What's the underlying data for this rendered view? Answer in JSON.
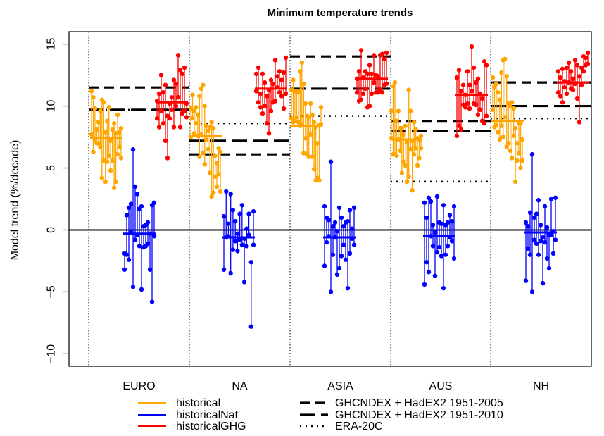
{
  "chart_data": {
    "type": "scatter",
    "title": "Minimum temperature trends",
    "xlabel": "",
    "ylabel": "Model trend (%/decade)",
    "ylim": [
      -11,
      16
    ],
    "yticks": [
      -10,
      -5,
      0,
      5,
      10,
      15
    ],
    "categories": [
      "EURO",
      "NA",
      "ASIA",
      "AUS",
      "NH"
    ],
    "grid": false,
    "zero_line": true,
    "series": [
      {
        "name": "historical",
        "color": "#FFA500",
        "means": [
          7.4,
          7.6,
          8.4,
          7.3,
          8.8
        ],
        "groups": [
          [
            [
              7.7,
              11.2
            ],
            [
              6.3,
              10.7
            ],
            [
              7.3,
              9.8
            ],
            [
              7.0,
              8.1
            ],
            [
              7.0,
              8.7
            ],
            [
              6.7,
              9.6
            ],
            [
              4.2,
              10.5
            ],
            [
              5.6,
              10.3
            ],
            [
              3.9,
              7.9
            ],
            [
              5.5,
              8.8
            ],
            [
              6.0,
              9.9
            ],
            [
              4.8,
              7.2
            ],
            [
              5.6,
              8.1
            ],
            [
              3.4,
              8.6
            ],
            [
              3.9,
              7.8
            ],
            [
              6.1,
              9.3
            ],
            [
              6.7,
              7.9
            ],
            [
              5.8,
              8.2
            ]
          ],
          [
            [
              7.5,
              9.8
            ],
            [
              9.0,
              10.9
            ],
            [
              7.8,
              9.6
            ],
            [
              8.6,
              9.9
            ],
            [
              7.6,
              9.3
            ],
            [
              5.9,
              10.8
            ],
            [
              7.7,
              11.4
            ],
            [
              6.2,
              11.7
            ],
            [
              5.3,
              10.0
            ],
            [
              7.3,
              8.4
            ],
            [
              6.5,
              8.0
            ],
            [
              4.6,
              8.3
            ],
            [
              2.7,
              8.7
            ],
            [
              3.0,
              8.2
            ],
            [
              4.3,
              6.0
            ],
            [
              3.5,
              5.4
            ],
            [
              4.5,
              6.6
            ],
            [
              3.1,
              6.3
            ]
          ],
          [
            [
              9.0,
              11.3
            ],
            [
              8.7,
              12.1
            ],
            [
              8.8,
              11.2
            ],
            [
              9.1,
              11.2
            ],
            [
              8.7,
              11.1
            ],
            [
              8.4,
              12.8
            ],
            [
              8.5,
              13.5
            ],
            [
              6.2,
              11.8
            ],
            [
              7.4,
              10.2
            ],
            [
              6.1,
              9.2
            ],
            [
              5.9,
              9.1
            ],
            [
              7.7,
              10.2
            ],
            [
              5.9,
              9.3
            ],
            [
              4.9,
              8.7
            ],
            [
              4.0,
              8.3
            ],
            [
              4.2,
              7.0
            ],
            [
              4.0,
              8.5
            ],
            [
              8.5,
              9.9
            ]
          ],
          [
            [
              7.4,
              9.6
            ],
            [
              6.1,
              11.6
            ],
            [
              6.1,
              11.9
            ],
            [
              6.0,
              8.8
            ],
            [
              7.3,
              9.6
            ],
            [
              6.4,
              8.2
            ],
            [
              4.6,
              8.2
            ],
            [
              5.5,
              7.7
            ],
            [
              5.2,
              8.4
            ],
            [
              3.9,
              7.1
            ],
            [
              4.3,
              11.3
            ],
            [
              6.5,
              9.6
            ],
            [
              3.2,
              7.2
            ],
            [
              6.1,
              8.7
            ],
            [
              6.6,
              8.1
            ],
            [
              5.2,
              7.4
            ],
            [
              5.8,
              7.3
            ],
            [
              6.6,
              7.6
            ]
          ],
          [
            [
              9.7,
              12.3
            ],
            [
              8.3,
              11.5
            ],
            [
              8.5,
              11.8
            ],
            [
              7.9,
              11.1
            ],
            [
              7.3,
              10.5
            ],
            [
              8.4,
              12.7
            ],
            [
              7.5,
              13.7
            ],
            [
              9.1,
              13.8
            ],
            [
              6.7,
              12.4
            ],
            [
              7.0,
              10.2
            ],
            [
              6.4,
              10.0
            ],
            [
              5.8,
              10.3
            ],
            [
              7.6,
              9.8
            ],
            [
              3.9,
              8.2
            ],
            [
              5.6,
              7.0
            ],
            [
              6.2,
              8.6
            ],
            [
              5.0,
              8.6
            ],
            [
              5.6,
              7.3
            ]
          ]
        ]
      },
      {
        "name": "historicalNat",
        "color": "#0000FF",
        "means": [
          -0.3,
          -0.6,
          -0.6,
          -0.5,
          -0.2
        ],
        "groups": [
          [
            [
              -3.2,
              -1.9
            ],
            [
              -2.0,
              1.2
            ],
            [
              -2.4,
              1.8
            ],
            [
              -0.2,
              2.1
            ],
            [
              -4.6,
              6.5
            ],
            [
              -0.8,
              3.5
            ],
            [
              -0.4,
              2.9
            ],
            [
              -1.3,
              1.7
            ],
            [
              -4.8,
              1.9
            ],
            [
              -1.4,
              0.3
            ],
            [
              -1.3,
              0.4
            ],
            [
              -1.1,
              0.6
            ],
            [
              -3.2,
              -0.3
            ],
            [
              -5.8,
              2.0
            ],
            [
              -0.5,
              2.2
            ]
          ],
          [
            [
              -3.2,
              1.1
            ],
            [
              -0.6,
              3.1
            ],
            [
              -0.5,
              0.5
            ],
            [
              -3.5,
              2.9
            ],
            [
              -1.6,
              1.6
            ],
            [
              -0.9,
              0.7
            ],
            [
              -1.7,
              -0.3
            ],
            [
              -0.8,
              1.3
            ],
            [
              -1.2,
              2.0
            ],
            [
              -4.2,
              -0.7
            ],
            [
              -1.3,
              0.1
            ],
            [
              -0.4,
              1.3
            ],
            [
              -7.8,
              -2.6
            ],
            [
              -1.2,
              1.5
            ]
          ],
          [
            [
              -2.9,
              1.9
            ],
            [
              -1.0,
              1.0
            ],
            [
              -0.5,
              0.8
            ],
            [
              -5.0,
              5.5
            ],
            [
              -2.0,
              0.3
            ],
            [
              -0.6,
              0.6
            ],
            [
              -3.6,
              -0.1
            ],
            [
              -3.1,
              1.8
            ],
            [
              -2.1,
              1.0
            ],
            [
              -1.2,
              0.3
            ],
            [
              -2.4,
              0.6
            ],
            [
              -4.7,
              0.7
            ],
            [
              -1.9,
              1.6
            ],
            [
              -0.7,
              0.1
            ],
            [
              -1.2,
              1.8
            ]
          ],
          [
            [
              -4.4,
              2.2
            ],
            [
              -2.6,
              1.0
            ],
            [
              -3.4,
              2.6
            ],
            [
              -0.5,
              2.3
            ],
            [
              -1.3,
              0.4
            ],
            [
              -3.7,
              -0.2
            ],
            [
              -1.8,
              2.7
            ],
            [
              -1.4,
              0.6
            ],
            [
              -2.1,
              0.5
            ],
            [
              -4.7,
              2.0
            ],
            [
              -2.0,
              0.4
            ],
            [
              -1.3,
              0.6
            ],
            [
              -0.6,
              1.2
            ],
            [
              -0.9,
              0.7
            ],
            [
              -2.3,
              1.9
            ]
          ],
          [
            [
              -4.1,
              0.6
            ],
            [
              -1.5,
              0.3
            ],
            [
              -2.0,
              1.4
            ],
            [
              -5.0,
              6.1
            ],
            [
              -0.8,
              1.0
            ],
            [
              -1.1,
              1.3
            ],
            [
              -2.0,
              2.4
            ],
            [
              -0.9,
              0.4
            ],
            [
              -4.3,
              -0.6
            ],
            [
              -1.0,
              1.9
            ],
            [
              -2.3,
              0.2
            ],
            [
              -3.1,
              -0.4
            ],
            [
              -0.4,
              2.5
            ],
            [
              -1.9,
              -0.1
            ],
            [
              -0.8,
              2.6
            ]
          ]
        ]
      },
      {
        "name": "historicalGHG",
        "color": "#FF0000",
        "means": [
          10.3,
          11.4,
          12.2,
          10.9,
          11.9
        ],
        "groups": [
          [
            [
              9.0,
              10.4
            ],
            [
              8.3,
              11.0
            ],
            [
              9.6,
              12.5
            ],
            [
              8.6,
              11.1
            ],
            [
              7.2,
              11.7
            ],
            [
              5.8,
              9.2
            ],
            [
              9.0,
              10.2
            ],
            [
              9.7,
              10.7
            ],
            [
              8.3,
              12.1
            ],
            [
              10.0,
              11.8
            ],
            [
              10.7,
              14.1
            ],
            [
              8.3,
              12.9
            ],
            [
              9.4,
              12.6
            ],
            [
              9.6,
              13.1
            ],
            [
              9.1,
              10.2
            ]
          ],
          [
            [
              11.2,
              12.6
            ],
            [
              10.3,
              13.1
            ],
            [
              9.9,
              11.0
            ],
            [
              9.4,
              12.6
            ],
            [
              10.0,
              11.9
            ],
            [
              8.6,
              10.8
            ],
            [
              7.8,
              11.3
            ],
            [
              9.6,
              12.1
            ],
            [
              10.3,
              11.8
            ],
            [
              10.4,
              13.7
            ],
            [
              11.5,
              12.4
            ],
            [
              11.1,
              12.8
            ],
            [
              10.8,
              12.1
            ],
            [
              9.8,
              12.7
            ],
            [
              11.0,
              13.9
            ]
          ],
          [
            [
              11.1,
              12.2
            ],
            [
              10.4,
              12.8
            ],
            [
              10.5,
              14.5
            ],
            [
              11.0,
              12.3
            ],
            [
              11.4,
              12.8
            ],
            [
              9.9,
              12.6
            ],
            [
              10.0,
              13.3
            ],
            [
              11.0,
              12.6
            ],
            [
              11.9,
              14.1
            ],
            [
              11.1,
              12.5
            ],
            [
              11.1,
              12.4
            ],
            [
              11.3,
              14.1
            ],
            [
              11.1,
              14.2
            ],
            [
              11.7,
              13.8
            ],
            [
              11.8,
              14.3
            ]
          ],
          [
            [
              7.6,
              12.3
            ],
            [
              8.4,
              12.9
            ],
            [
              8.1,
              11.2
            ],
            [
              10.1,
              11.7
            ],
            [
              9.9,
              10.9
            ],
            [
              10.2,
              12.8
            ],
            [
              9.8,
              11.7
            ],
            [
              11.2,
              14.8
            ],
            [
              10.2,
              13.1
            ],
            [
              10.1,
              11.9
            ],
            [
              9.3,
              12.2
            ],
            [
              9.7,
              11.0
            ],
            [
              8.8,
              10.6
            ],
            [
              8.6,
              13.6
            ],
            [
              9.2,
              13.3
            ]
          ],
          [
            [
              11.1,
              12.8
            ],
            [
              10.8,
              12.3
            ],
            [
              10.3,
              13.0
            ],
            [
              11.5,
              12.0
            ],
            [
              11.0,
              13.1
            ],
            [
              11.9,
              13.5
            ],
            [
              11.4,
              12.8
            ],
            [
              11.3,
              12.2
            ],
            [
              11.8,
              13.7
            ],
            [
              10.6,
              13.3
            ],
            [
              8.7,
              12.4
            ],
            [
              11.7,
              13.1
            ],
            [
              12.8,
              14.0
            ],
            [
              13.3,
              13.9
            ],
            [
              13.4,
              14.3
            ]
          ]
        ]
      }
    ],
    "reference_lines": [
      {
        "name": "GHCNDEX + HadEX2 1951-2005",
        "style": "dashed",
        "values": [
          11.5,
          6.1,
          14.0,
          8.8,
          11.9
        ]
      },
      {
        "name": "GHCNDEX + HadEX2 1951-2010",
        "style": "longdash",
        "values": [
          9.7,
          7.2,
          11.4,
          8.0,
          10.0
        ]
      },
      {
        "name": "ERA-20C",
        "style": "dotted",
        "values": [
          9.7,
          8.6,
          9.2,
          3.9,
          9.0
        ]
      }
    ],
    "legend_position": "bottom"
  }
}
